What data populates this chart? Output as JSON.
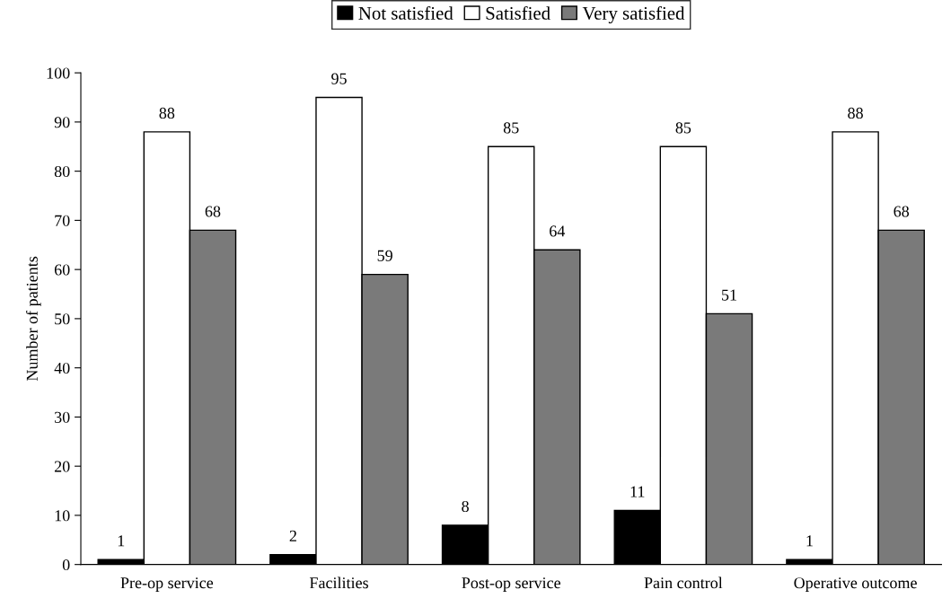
{
  "chart_data": {
    "type": "bar",
    "categories": [
      "Pre-op service",
      "Facilities",
      "Post-op service",
      "Pain control",
      "Operative outcome"
    ],
    "ylabel": "Number of patients",
    "series": [
      {
        "name": "Not satisfied",
        "color": "#000000",
        "values": [
          1,
          2,
          8,
          11,
          1
        ]
      },
      {
        "name": "Satisfied",
        "color": "#ffffff",
        "values": [
          88,
          95,
          85,
          85,
          88
        ]
      },
      {
        "name": "Very satisfied",
        "color": "#7a7a7a",
        "values": [
          68,
          59,
          64,
          51,
          68
        ]
      }
    ],
    "ylim": [
      0,
      100
    ],
    "yticks": [
      0,
      10,
      20,
      30,
      40,
      50,
      60,
      70,
      80,
      90,
      100
    ],
    "data_labels": true,
    "legend": "top",
    "grid": false
  }
}
